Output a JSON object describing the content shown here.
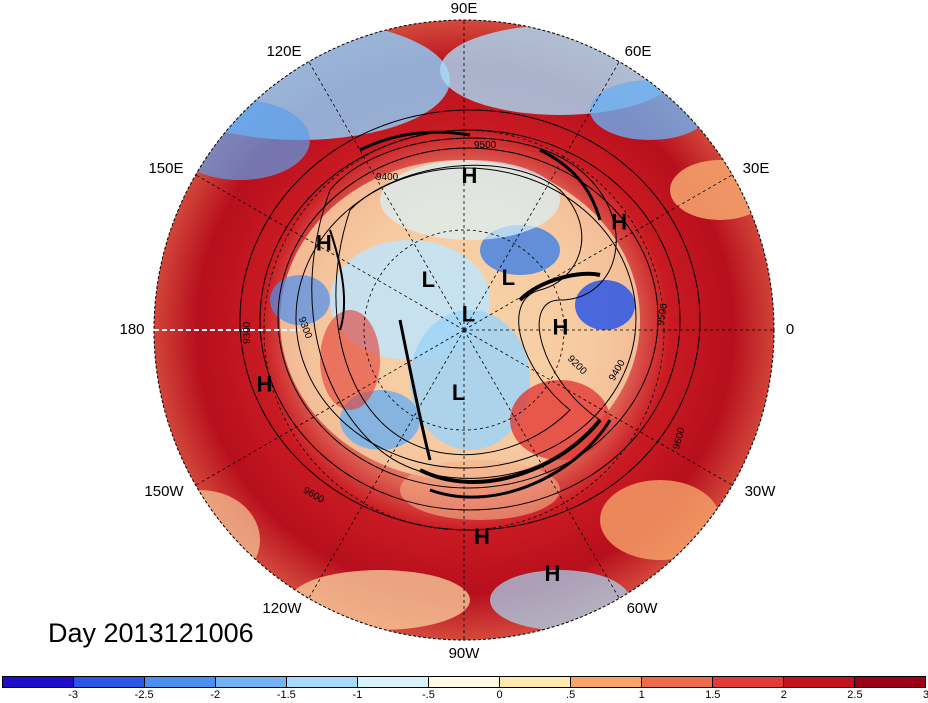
{
  "title": "Day 2013121006",
  "longitude_labels": [
    "90E",
    "60E",
    "30E",
    "0",
    "30W",
    "60W",
    "90W",
    "120W",
    "150W",
    "180",
    "150E",
    "120E"
  ],
  "pressure_centers": [
    {
      "label": "H",
      "lat": 45,
      "lon": 88
    },
    {
      "label": "H",
      "lat": 35,
      "lon": 35
    },
    {
      "label": "H",
      "lat": 42,
      "lon": 148
    },
    {
      "label": "H",
      "lat": 30,
      "lon": -165
    },
    {
      "label": "H",
      "lat": 62,
      "lon": 2
    },
    {
      "label": "H",
      "lat": 30,
      "lon": -85
    },
    {
      "label": "H",
      "lat": 15,
      "lon": -70
    },
    {
      "label": "L",
      "lat": 72,
      "lon": 125
    },
    {
      "label": "L",
      "lat": 70,
      "lon": 50
    },
    {
      "label": "L",
      "lat": 85,
      "lon": 75
    },
    {
      "label": "L",
      "lat": 72,
      "lon": -95
    }
  ],
  "contour_labels": [
    "9500",
    "9400",
    "9300",
    "9300",
    "9200",
    "9400",
    "9600",
    "9600",
    "9500"
  ],
  "colorbar": {
    "colors": [
      "#1f0ec8",
      "#2b56e6",
      "#4c8ef0",
      "#74b2f4",
      "#a6dcf8",
      "#d8f2fb",
      "#fffbe0",
      "#fde9a9",
      "#f6a46a",
      "#ed6c4a",
      "#e23a34",
      "#c5101e",
      "#9b0018"
    ],
    "tick_labels": [
      "-3",
      "-2.5",
      "-2",
      "-1.5",
      "-1",
      "-.5",
      "0",
      ".5",
      "1",
      "1.5",
      "2",
      "2.5",
      "3"
    ]
  }
}
